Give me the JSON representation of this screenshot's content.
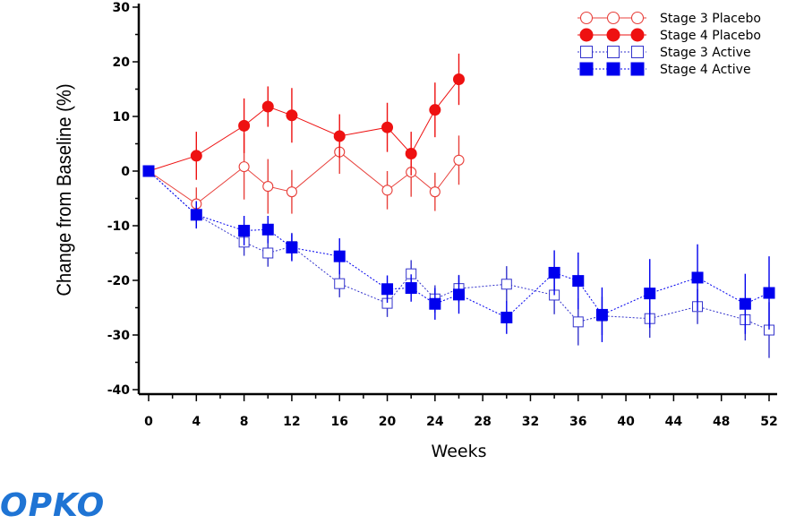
{
  "logo": {
    "text": "OPKO",
    "color": "#1f74d4"
  },
  "chart_data": {
    "type": "line",
    "xlabel": "Weeks",
    "ylabel": "Change from Baseline (%)",
    "xlim": [
      0,
      52
    ],
    "ylim": [
      -40,
      30
    ],
    "xticks": [
      0,
      4,
      8,
      12,
      16,
      20,
      24,
      28,
      32,
      36,
      40,
      44,
      48,
      52
    ],
    "yticks": [
      30,
      20,
      10,
      0,
      -10,
      -20,
      -30,
      -40
    ],
    "grid": false,
    "legend_position": "top-right",
    "series": [
      {
        "name": "Stage 3 Placebo",
        "color": "#e8413c",
        "marker": "circle-open",
        "line": "solid",
        "x": [
          0,
          4,
          8,
          10,
          12,
          16,
          20,
          22,
          24,
          26
        ],
        "y": [
          0,
          -6,
          0.8,
          -2.8,
          -3.8,
          3.5,
          -3.5,
          -0.2,
          -3.8,
          2
        ],
        "error": [
          0,
          3,
          6,
          5,
          4,
          4,
          3.5,
          4.5,
          3.5,
          4.5
        ]
      },
      {
        "name": "Stage 4 Placebo",
        "color": "#ee1111",
        "marker": "circle-filled",
        "line": "solid",
        "x": [
          0,
          4,
          8,
          10,
          12,
          16,
          20,
          22,
          24,
          26
        ],
        "y": [
          0,
          2.8,
          8.3,
          11.8,
          10.2,
          6.4,
          8,
          3.2,
          11.2,
          16.8
        ],
        "error": [
          0,
          4.4,
          5,
          3.7,
          5,
          4,
          4.5,
          4,
          5,
          4.7
        ]
      },
      {
        "name": "Stage 3 Active",
        "color": "#3333cc",
        "marker": "square-open",
        "line": "dotted",
        "x": [
          0,
          4,
          8,
          10,
          12,
          16,
          20,
          22,
          24,
          26,
          30,
          34,
          36,
          38,
          42,
          46,
          50,
          52
        ],
        "y": [
          0,
          -8,
          -13,
          -15,
          -13.8,
          -20.6,
          -24.2,
          -18.8,
          -23.4,
          -21.5,
          -20.7,
          -22.7,
          -27.6,
          -26.5,
          -27,
          -24.8,
          -27.2,
          -29.1
        ],
        "error": [
          0,
          2.5,
          2.5,
          2.5,
          2.5,
          2.5,
          2.5,
          2.5,
          2.5,
          2.5,
          3.3,
          3.5,
          4.3,
          3.5,
          3.5,
          3.2,
          3.8,
          5.1
        ]
      },
      {
        "name": "Stage 4 Active",
        "color": "#0000ee",
        "marker": "square-filled",
        "line": "dotted",
        "x": [
          0,
          4,
          8,
          10,
          12,
          16,
          20,
          22,
          24,
          26,
          30,
          34,
          36,
          38,
          42,
          46,
          50,
          52
        ],
        "y": [
          0,
          -8,
          -10.9,
          -10.7,
          -14,
          -15.6,
          -21.6,
          -21.4,
          -24.3,
          -22.6,
          -26.8,
          -18.6,
          -20.1,
          -26.3,
          -22.4,
          -19.5,
          -24.3,
          -22.3
        ],
        "error": [
          0,
          2.5,
          2.7,
          2.5,
          2.5,
          3.3,
          2.5,
          2.5,
          2.9,
          3.5,
          3,
          4.1,
          5.2,
          5,
          6.3,
          6.1,
          5.5,
          6.7
        ]
      }
    ]
  }
}
